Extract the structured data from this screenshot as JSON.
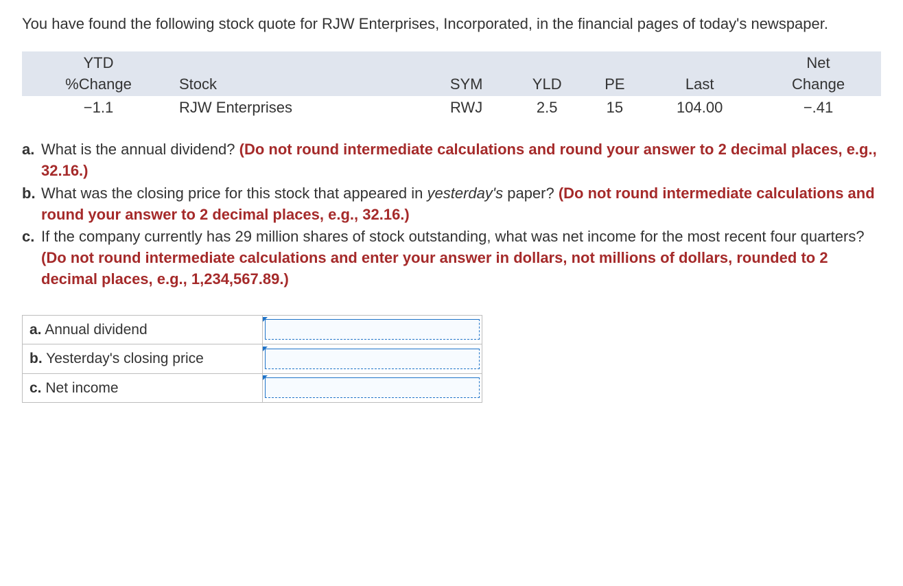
{
  "intro": "You have found the following stock quote for RJW Enterprises, Incorporated, in the financial pages of today's newspaper.",
  "stock_table": {
    "headers": {
      "ytd_line1": "YTD",
      "ytd_line2": "%Change",
      "stock": "Stock",
      "sym": "SYM",
      "yld": "YLD",
      "pe": "PE",
      "last": "Last",
      "net_line1": "Net",
      "net_line2": "Change"
    },
    "row": {
      "ytd": "−1.1",
      "stock": "RJW Enterprises",
      "sym": "RWJ",
      "yld": "2.5",
      "pe": "15",
      "last": "104.00",
      "net": "−.41"
    }
  },
  "questions": {
    "a": {
      "label": "a.",
      "text": "What is the annual dividend? ",
      "highlight": "(Do not round intermediate calculations and round your answer to 2 decimal places, e.g., 32.16.)"
    },
    "b": {
      "label": "b.",
      "text1": "What was the closing price for this stock that appeared in ",
      "italic": "yesterday's",
      "text2": " paper? ",
      "highlight": "(Do not round intermediate calculations and round your answer to 2 decimal places, e.g., 32.16.)"
    },
    "c": {
      "label": "c.",
      "text": "If the company currently has 29 million shares of stock outstanding, what was net income for the most recent four quarters? ",
      "highlight": "(Do not round intermediate calculations and enter your answer in dollars, not millions of dollars, rounded to 2 decimal places, e.g., 1,234,567.89.)"
    }
  },
  "answer_labels": {
    "a_letter": "a.",
    "a_text": " Annual dividend",
    "b_letter": "b.",
    "b_text": " Yesterday's closing price",
    "c_letter": "c.",
    "c_text": " Net income"
  }
}
